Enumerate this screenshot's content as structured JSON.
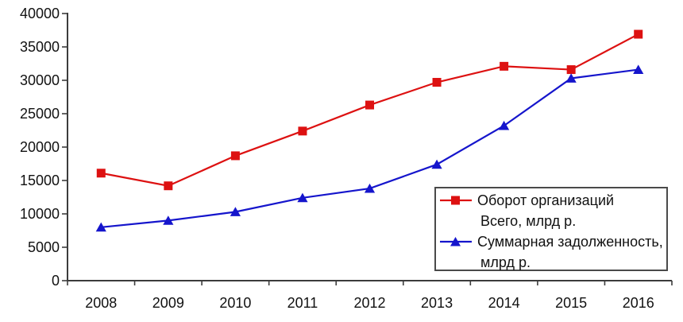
{
  "chart_data": {
    "type": "line",
    "title": "",
    "xlabel": "",
    "ylabel": "",
    "categories": [
      "2008",
      "2009",
      "2010",
      "2011",
      "2012",
      "2013",
      "2014",
      "2015",
      "2016"
    ],
    "series": [
      {
        "name": "Оборот организаций Всего, млрд р.",
        "color": "#dd1111",
        "marker": "square",
        "values": [
          16100,
          14200,
          18700,
          22400,
          26300,
          29700,
          32100,
          31600,
          36900
        ]
      },
      {
        "name": "Суммарная задолженность, млрд р.",
        "color": "#1515cc",
        "marker": "triangle-up",
        "values": [
          8000,
          9000,
          10300,
          12400,
          13800,
          17400,
          23200,
          30300,
          31600
        ]
      }
    ],
    "ylim": [
      0,
      40000
    ],
    "yticks": [
      0,
      5000,
      10000,
      15000,
      20000,
      25000,
      30000,
      35000,
      40000
    ],
    "grid": false,
    "axis_color": "#3c3c3c",
    "legend": {
      "position": "inside-bottom-right",
      "entries": [
        {
          "marker": "square",
          "line1": "Оборот организаций",
          "line2": "Всего, млрд р."
        },
        {
          "marker": "triangle-up",
          "line1": "Суммарная задолженность,",
          "line2": "млрд р."
        }
      ]
    }
  }
}
